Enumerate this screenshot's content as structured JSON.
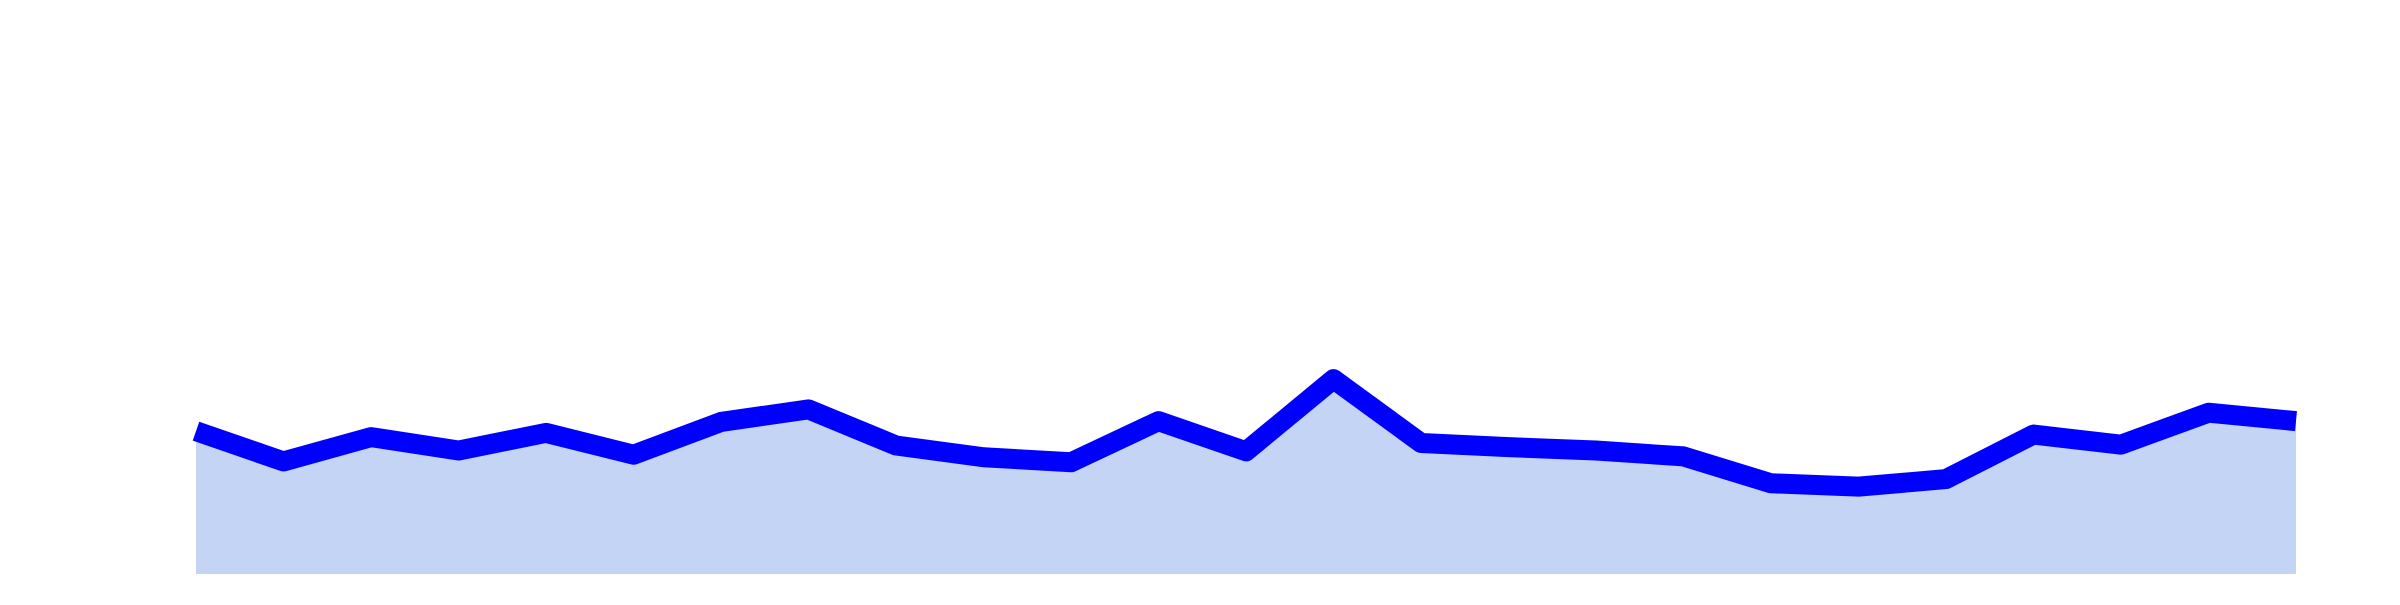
{
  "chart_data": {
    "type": "area",
    "x": [
      1,
      2,
      3,
      4,
      5,
      6,
      7,
      8,
      9,
      10,
      11,
      12,
      13,
      14,
      15,
      16,
      17,
      18,
      19,
      20,
      21,
      22,
      23,
      24,
      25
    ],
    "series": [
      {
        "values": [
          17.0,
          13.4,
          16.3,
          14.7,
          16.8,
          14.2,
          18.1,
          19.6,
          15.3,
          13.9,
          13.3,
          18.2,
          14.6,
          23.2,
          15.6,
          15.1,
          14.7,
          14.0,
          10.8,
          10.4,
          11.3,
          16.6,
          15.4,
          19.2,
          18.2
        ]
      }
    ],
    "ylim": [
      0,
      100
    ],
    "grid": false,
    "axes_visible": false,
    "line_color": "#0000ff",
    "fill_color": "#c3d4f5"
  }
}
